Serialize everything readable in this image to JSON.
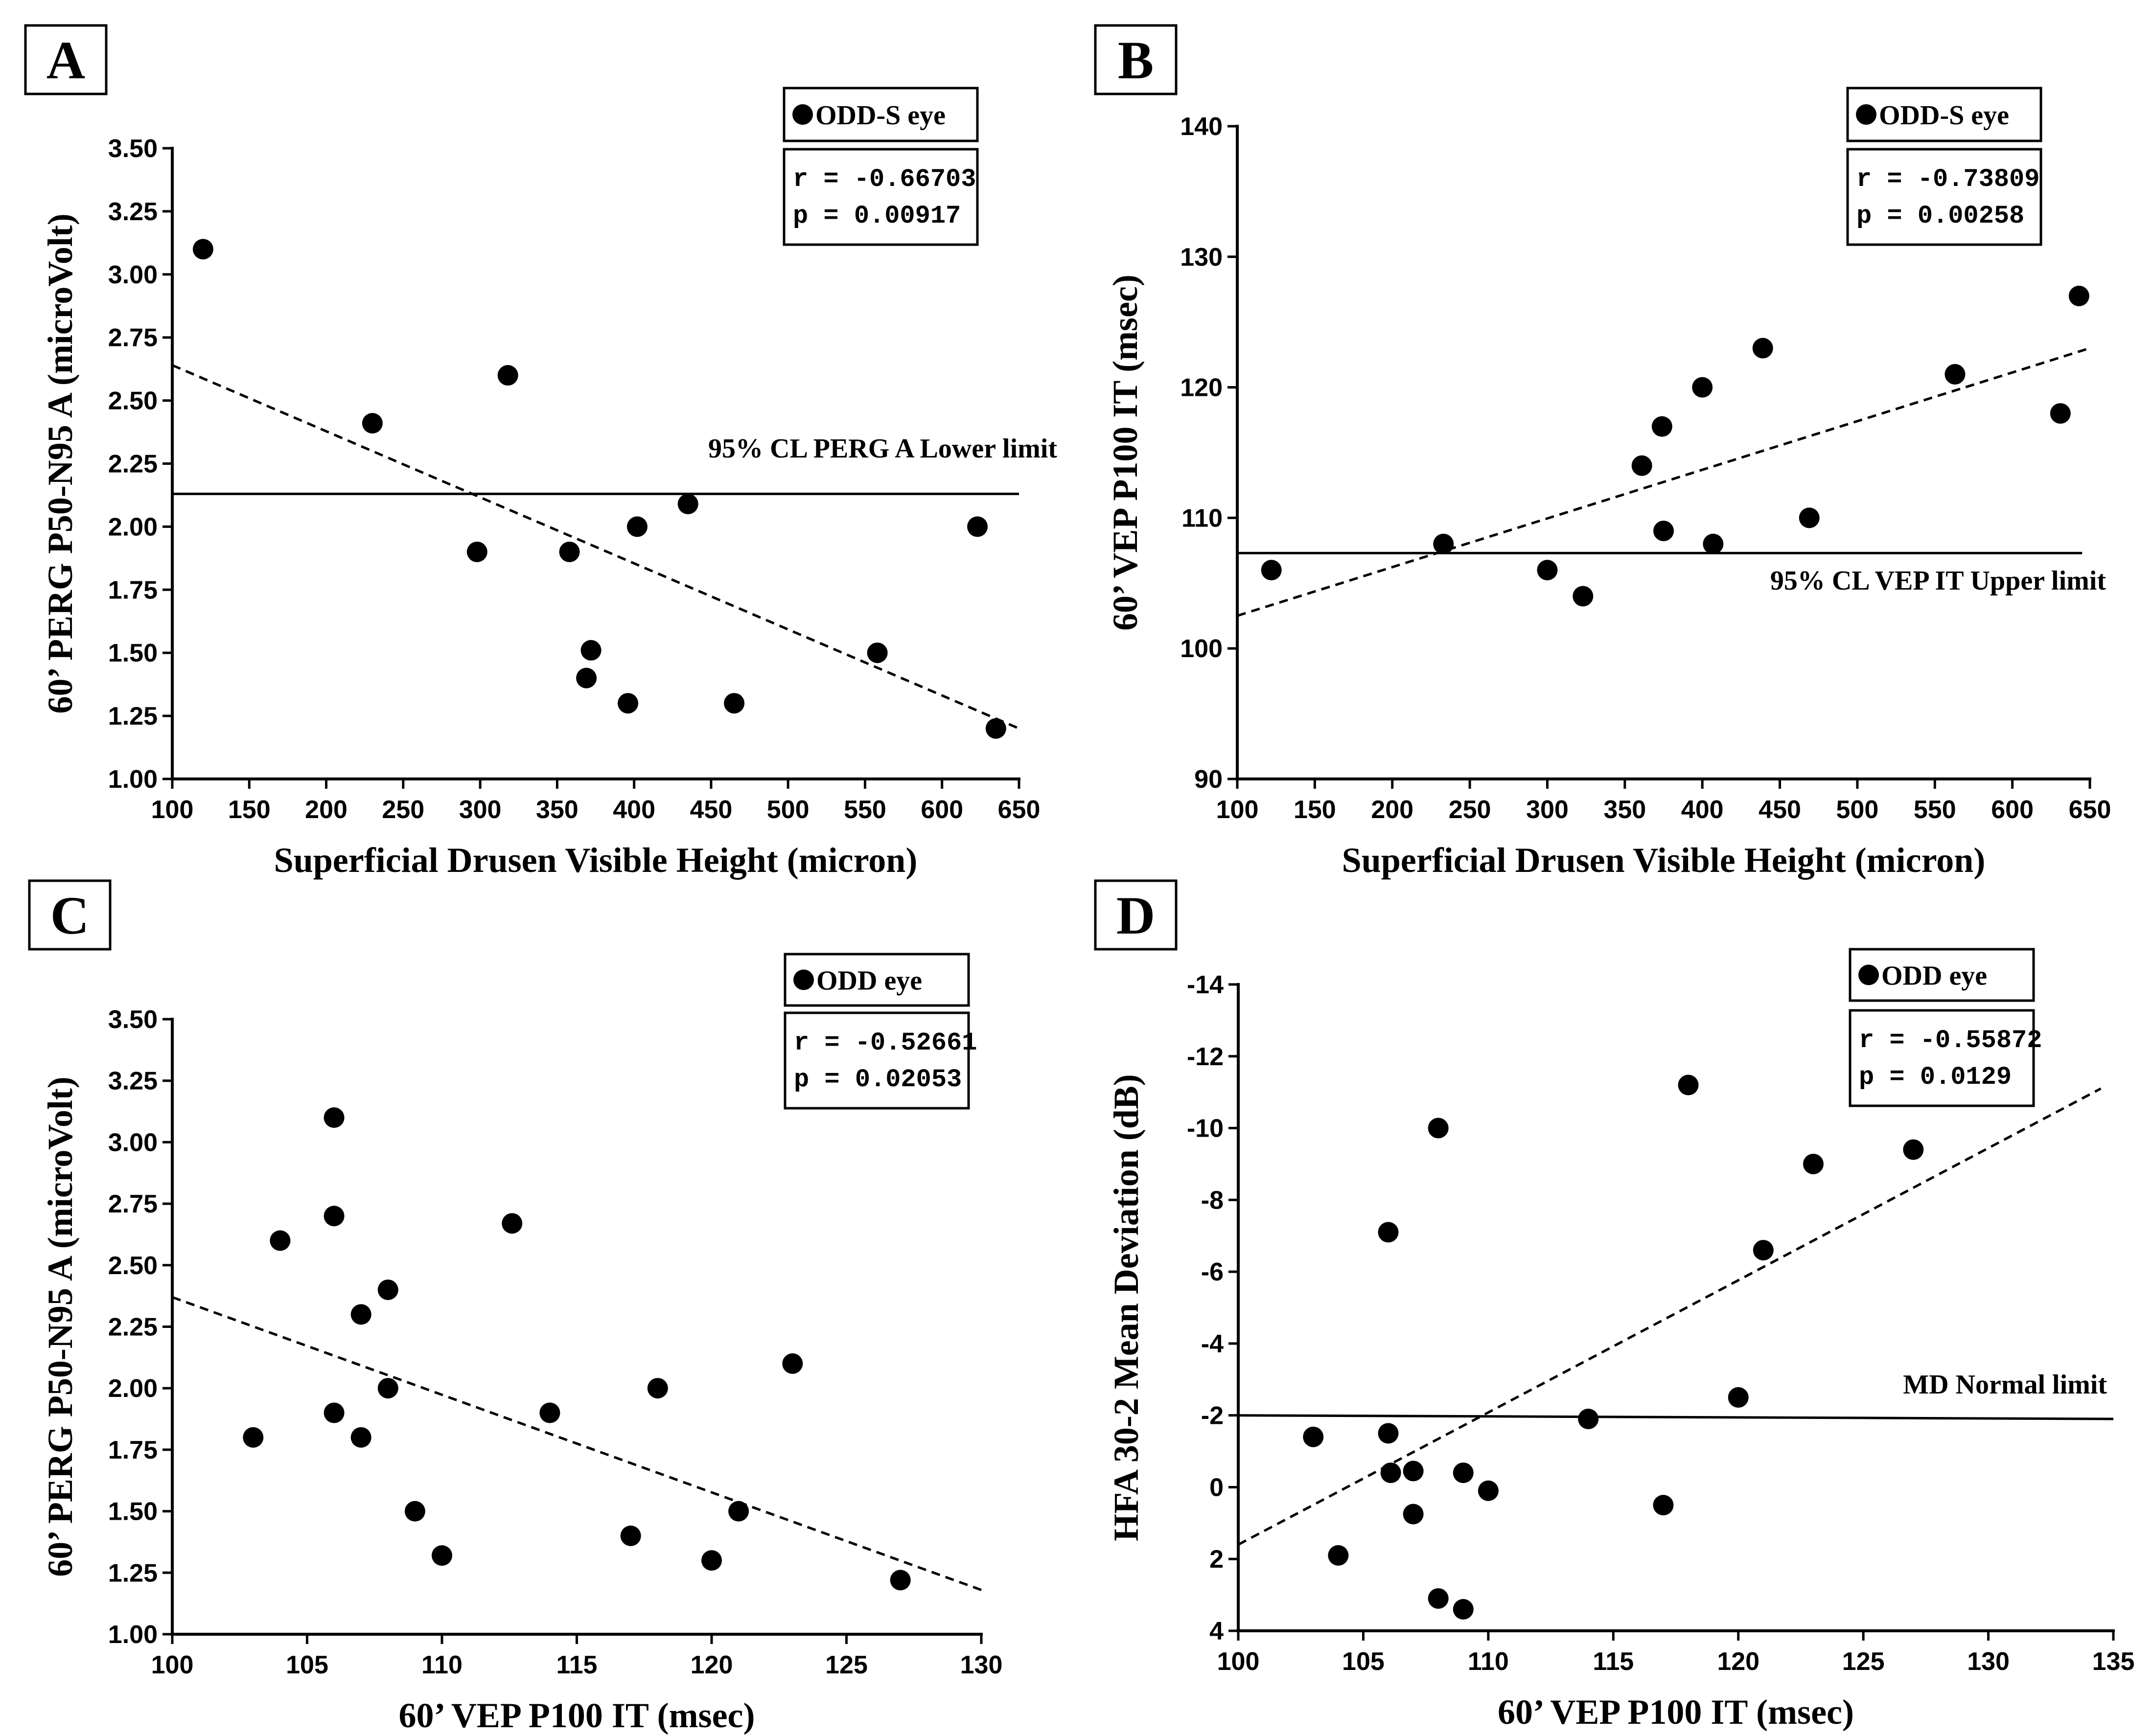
{
  "chart_data": [
    {
      "panel": "A",
      "type": "scatter",
      "title": "",
      "xlabel": "Superficial Drusen Visible Height (micron)",
      "ylabel": "60’ PERG P50-N95 A (microVolt)",
      "xlim": [
        100,
        650
      ],
      "ylim": [
        1.0,
        3.5
      ],
      "x_ticks": [
        100,
        150,
        200,
        250,
        300,
        350,
        400,
        450,
        500,
        550,
        600,
        650
      ],
      "y_ticks": [
        1.0,
        1.25,
        1.5,
        1.75,
        2.0,
        2.25,
        2.5,
        2.75,
        3.0,
        3.25,
        3.5
      ],
      "x_tick_labels": [
        "100",
        "150",
        "200",
        "250",
        "300",
        "350",
        "400",
        "450",
        "500",
        "550",
        "600",
        "650"
      ],
      "y_tick_labels": [
        "1.00",
        "1.25",
        "1.50",
        "1.75",
        "2.00",
        "2.25",
        "2.50",
        "2.75",
        "3.00",
        "3.25",
        "3.50"
      ],
      "legend": "ODD-S eye",
      "stats": [
        "r = -0.66703",
        "p = 0.00917"
      ],
      "points": [
        [
          120,
          3.1
        ],
        [
          230,
          2.41
        ],
        [
          318,
          2.6
        ],
        [
          298,
          1.9
        ],
        [
          358,
          1.9
        ],
        [
          369,
          1.4
        ],
        [
          372,
          1.51
        ],
        [
          396,
          1.3
        ],
        [
          402,
          2.0
        ],
        [
          435,
          2.09
        ],
        [
          465,
          1.3
        ],
        [
          558,
          1.5
        ],
        [
          623,
          2.0
        ],
        [
          635,
          1.2
        ]
      ],
      "fit_line": [
        [
          100,
          2.64
        ],
        [
          650,
          1.2
        ]
      ],
      "ref_line": {
        "y": 2.13,
        "x_range": [
          100,
          650
        ],
        "label": "95% CL PERG A Lower limit"
      }
    },
    {
      "panel": "B",
      "type": "scatter",
      "title": "",
      "xlabel": "Superficial Drusen Visible Height (micron)",
      "ylabel": "60’ VEP P100 IT (msec)",
      "xlim": [
        100,
        650
      ],
      "ylim": [
        90,
        140
      ],
      "x_ticks": [
        100,
        150,
        200,
        250,
        300,
        350,
        400,
        450,
        500,
        550,
        600,
        650
      ],
      "y_ticks": [
        90,
        100,
        110,
        120,
        130,
        140
      ],
      "x_tick_labels": [
        "100",
        "150",
        "200",
        "250",
        "300",
        "350",
        "400",
        "450",
        "500",
        "550",
        "600",
        "650"
      ],
      "y_tick_labels": [
        "90",
        "100",
        "110",
        "120",
        "130",
        "140"
      ],
      "legend": "ODD-S eye",
      "stats": [
        "r = -0.73809",
        "p = 0.00258"
      ],
      "points": [
        [
          122,
          106
        ],
        [
          233,
          108
        ],
        [
          300,
          106
        ],
        [
          323,
          104
        ],
        [
          361,
          114
        ],
        [
          374,
          117
        ],
        [
          375,
          109
        ],
        [
          400,
          120
        ],
        [
          407,
          108
        ],
        [
          439,
          123
        ],
        [
          469,
          110
        ],
        [
          563,
          121
        ],
        [
          631,
          118
        ],
        [
          643,
          127
        ]
      ],
      "fit_line": [
        [
          100,
          102.5
        ],
        [
          650,
          123
        ]
      ],
      "ref_line": {
        "y": 107.3,
        "x_range": [
          100,
          645
        ],
        "label": "95% CL VEP IT Upper limit"
      }
    },
    {
      "panel": "C",
      "type": "scatter",
      "title": "",
      "xlabel": "60’ VEP P100 IT (msec)",
      "ylabel": "60’ PERG P50-N95 A (microVolt)",
      "xlim": [
        100,
        130
      ],
      "ylim": [
        1.0,
        3.5
      ],
      "x_ticks": [
        100,
        105,
        110,
        115,
        120,
        125,
        130
      ],
      "y_ticks": [
        1.0,
        1.25,
        1.5,
        1.75,
        2.0,
        2.25,
        2.5,
        2.75,
        3.0,
        3.25,
        3.5
      ],
      "x_tick_labels": [
        "100",
        "105",
        "110",
        "115",
        "120",
        "125",
        "130"
      ],
      "y_tick_labels": [
        "1.00",
        "1.25",
        "1.50",
        "1.75",
        "2.00",
        "2.25",
        "2.50",
        "2.75",
        "3.00",
        "3.25",
        "3.50"
      ],
      "legend": "ODD eye",
      "stats": [
        "r = -0.52661",
        "p = 0.02053"
      ],
      "points": [
        [
          103,
          1.8
        ],
        [
          104,
          2.6
        ],
        [
          106,
          3.1
        ],
        [
          106,
          2.7
        ],
        [
          106,
          1.9
        ],
        [
          107,
          2.3
        ],
        [
          107,
          1.8
        ],
        [
          108,
          2.4
        ],
        [
          108,
          2.0
        ],
        [
          109,
          1.5
        ],
        [
          110,
          1.32
        ],
        [
          112.6,
          2.67
        ],
        [
          114,
          1.9
        ],
        [
          117,
          1.4
        ],
        [
          118,
          2.0
        ],
        [
          120,
          1.3
        ],
        [
          121,
          1.5
        ],
        [
          123,
          2.1
        ],
        [
          127,
          1.22
        ]
      ],
      "fit_line": [
        [
          100,
          2.37
        ],
        [
          130,
          1.18
        ]
      ]
    },
    {
      "panel": "D",
      "type": "scatter",
      "title": "",
      "xlabel": "60’ VEP P100 IT (msec)",
      "ylabel": "HFA 30-2 Mean Deviation (dB)",
      "xlim": [
        100,
        135
      ],
      "ylim": [
        4,
        -14
      ],
      "x_ticks": [
        100,
        105,
        110,
        115,
        120,
        125,
        130,
        135
      ],
      "y_ticks": [
        4,
        2,
        0,
        -2,
        -4,
        -6,
        -8,
        -10,
        -12,
        -14
      ],
      "x_tick_labels": [
        "100",
        "105",
        "110",
        "115",
        "120",
        "125",
        "130",
        "135"
      ],
      "y_tick_labels": [
        "4",
        "2",
        "0",
        "-2",
        "-4",
        "-6",
        "-8",
        "-10",
        "-12",
        "-14"
      ],
      "legend": "ODD eye",
      "stats": [
        "r = -0.55872",
        "p = 0.0129"
      ],
      "points": [
        [
          103,
          -1.4
        ],
        [
          104,
          1.9
        ],
        [
          106,
          -7.1
        ],
        [
          106,
          -1.5
        ],
        [
          106.1,
          -0.4
        ],
        [
          107,
          -0.45
        ],
        [
          107,
          0.75
        ],
        [
          108,
          -10
        ],
        [
          108,
          3.1
        ],
        [
          109,
          -0.4
        ],
        [
          109,
          3.4
        ],
        [
          110,
          0.1
        ],
        [
          114,
          -1.9
        ],
        [
          117,
          0.5
        ],
        [
          118,
          -11.2
        ],
        [
          120,
          -2.5
        ],
        [
          121,
          -6.6
        ],
        [
          123,
          -9
        ],
        [
          127,
          -9.4
        ]
      ],
      "fit_line": [
        [
          100,
          1.6
        ],
        [
          134.5,
          -11.1
        ]
      ],
      "ref_line": {
        "y": -2,
        "x_range": [
          100,
          135
        ],
        "y_end": -1.9,
        "label": "MD Normal limit"
      }
    }
  ]
}
